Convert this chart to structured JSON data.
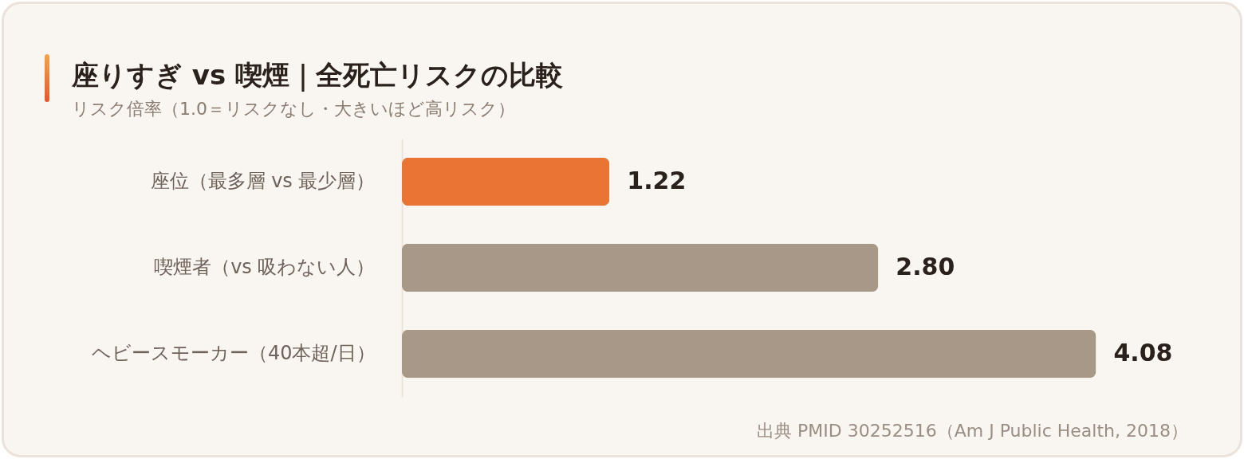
{
  "chart_data": {
    "type": "bar",
    "orientation": "horizontal",
    "title": "座りすぎ vs 喫煙｜全死亡リスクの比較",
    "subtitle": "リスク倍率（1.0＝リスクなし・大きいほど高リスク）",
    "categories": [
      "座位（最多層 vs 最少層）",
      "喫煙者（vs 吸わない人）",
      "ヘビースモーカー（40本超/日）"
    ],
    "values": [
      1.22,
      2.8,
      4.08
    ],
    "colors": [
      "#ea7434",
      "#a89888",
      "#a89888"
    ],
    "value_labels": [
      "1.22",
      "2.80",
      "4.08"
    ],
    "tick_labels": "y",
    "annotations": [
      "出典 PMID 30252516（Am J Public Health, 2018）"
    ]
  }
}
